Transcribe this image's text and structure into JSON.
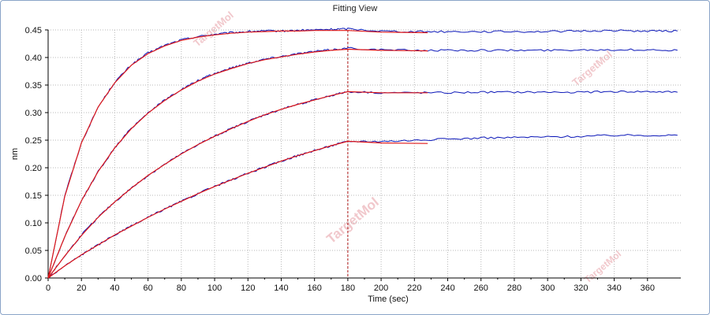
{
  "window": {
    "title": "Fitting View"
  },
  "chart_data": {
    "type": "line",
    "title": "Fitting View",
    "xlabel": "Time (sec)",
    "ylabel": "nm",
    "xlim": [
      0,
      380
    ],
    "ylim": [
      0,
      0.45
    ],
    "x_ticks": [
      0,
      20,
      40,
      60,
      80,
      100,
      120,
      140,
      160,
      180,
      200,
      220,
      240,
      260,
      280,
      300,
      320,
      340,
      360
    ],
    "y_ticks": [
      0.0,
      0.05,
      0.1,
      0.15,
      0.2,
      0.25,
      0.3,
      0.35,
      0.4,
      0.45
    ],
    "grid": true,
    "association_end_x": 180,
    "colors": {
      "measured": "#0a16b8",
      "fit": "#e01818",
      "marker": "#b01818"
    },
    "watermark": "TargetMol",
    "series": [
      {
        "x": [
          0,
          10,
          20,
          30,
          40,
          50,
          60,
          70,
          80,
          90,
          100,
          110,
          120,
          130,
          140,
          150,
          160,
          170,
          180,
          200,
          220,
          240,
          260,
          280,
          300,
          320,
          340,
          360,
          378
        ],
        "y": [
          0,
          0.15,
          0.245,
          0.31,
          0.355,
          0.387,
          0.408,
          0.422,
          0.432,
          0.438,
          0.442,
          0.445,
          0.447,
          0.448,
          0.448,
          0.449,
          0.45,
          0.451,
          0.452,
          0.448,
          0.447,
          0.447,
          0.447,
          0.447,
          0.447,
          0.448,
          0.449,
          0.448,
          0.448
        ]
      },
      {
        "x": [
          0,
          10,
          20,
          30,
          40,
          50,
          60,
          70,
          80,
          90,
          100,
          110,
          120,
          130,
          140,
          150,
          160,
          170,
          180,
          200,
          220,
          240,
          260,
          280,
          300,
          320,
          340,
          360,
          378
        ],
        "y": [
          0,
          0.075,
          0.14,
          0.193,
          0.236,
          0.272,
          0.3,
          0.323,
          0.342,
          0.358,
          0.371,
          0.381,
          0.39,
          0.397,
          0.402,
          0.407,
          0.411,
          0.414,
          0.417,
          0.414,
          0.413,
          0.413,
          0.413,
          0.413,
          0.413,
          0.414,
          0.414,
          0.414,
          0.413
        ]
      },
      {
        "x": [
          0,
          10,
          20,
          30,
          40,
          50,
          60,
          70,
          80,
          90,
          100,
          110,
          120,
          130,
          140,
          150,
          160,
          170,
          180,
          200,
          220,
          240,
          260,
          280,
          300,
          320,
          340,
          360,
          378
        ],
        "y": [
          0,
          0.04,
          0.078,
          0.11,
          0.138,
          0.163,
          0.186,
          0.206,
          0.225,
          0.242,
          0.257,
          0.271,
          0.284,
          0.296,
          0.306,
          0.315,
          0.323,
          0.331,
          0.338,
          0.336,
          0.336,
          0.336,
          0.337,
          0.337,
          0.337,
          0.337,
          0.338,
          0.338,
          0.337
        ]
      },
      {
        "x": [
          0,
          10,
          20,
          30,
          40,
          50,
          60,
          70,
          80,
          90,
          100,
          110,
          120,
          130,
          140,
          150,
          160,
          170,
          180,
          200,
          220,
          240,
          260,
          280,
          300,
          320,
          340,
          360,
          378
        ],
        "y": [
          0,
          0.022,
          0.042,
          0.06,
          0.078,
          0.094,
          0.11,
          0.125,
          0.139,
          0.153,
          0.166,
          0.178,
          0.19,
          0.201,
          0.212,
          0.222,
          0.231,
          0.24,
          0.248,
          0.248,
          0.25,
          0.252,
          0.254,
          0.255,
          0.256,
          0.257,
          0.259,
          0.259,
          0.259
        ]
      }
    ],
    "fits": [
      {
        "x": [
          0,
          10,
          20,
          30,
          40,
          50,
          60,
          70,
          80,
          90,
          100,
          110,
          120,
          130,
          140,
          150,
          160,
          170,
          180,
          200,
          228
        ],
        "y": [
          0,
          0.148,
          0.245,
          0.31,
          0.354,
          0.386,
          0.407,
          0.421,
          0.431,
          0.437,
          0.441,
          0.444,
          0.446,
          0.447,
          0.448,
          0.448,
          0.449,
          0.449,
          0.449,
          0.446,
          0.445
        ]
      },
      {
        "x": [
          0,
          10,
          20,
          30,
          40,
          50,
          60,
          70,
          80,
          90,
          100,
          110,
          120,
          130,
          140,
          150,
          160,
          170,
          180,
          200,
          228
        ],
        "y": [
          0,
          0.075,
          0.14,
          0.193,
          0.236,
          0.271,
          0.299,
          0.322,
          0.341,
          0.357,
          0.37,
          0.38,
          0.389,
          0.396,
          0.401,
          0.406,
          0.41,
          0.413,
          0.415,
          0.413,
          0.412
        ]
      },
      {
        "x": [
          0,
          10,
          20,
          30,
          40,
          50,
          60,
          70,
          80,
          90,
          100,
          110,
          120,
          130,
          140,
          150,
          160,
          170,
          180,
          200,
          228
        ],
        "y": [
          0,
          0.04,
          0.077,
          0.11,
          0.138,
          0.163,
          0.186,
          0.206,
          0.225,
          0.242,
          0.257,
          0.271,
          0.284,
          0.296,
          0.306,
          0.315,
          0.323,
          0.331,
          0.338,
          0.336,
          0.336
        ]
      },
      {
        "x": [
          0,
          10,
          20,
          30,
          40,
          50,
          60,
          70,
          80,
          90,
          100,
          110,
          120,
          130,
          140,
          150,
          160,
          170,
          180,
          200,
          228
        ],
        "y": [
          0,
          0.022,
          0.042,
          0.06,
          0.078,
          0.094,
          0.11,
          0.125,
          0.139,
          0.153,
          0.166,
          0.178,
          0.19,
          0.201,
          0.212,
          0.222,
          0.231,
          0.24,
          0.248,
          0.245,
          0.244
        ]
      }
    ]
  }
}
